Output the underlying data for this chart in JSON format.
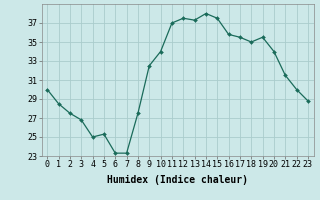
{
  "x": [
    0,
    1,
    2,
    3,
    4,
    5,
    6,
    7,
    8,
    9,
    10,
    11,
    12,
    13,
    14,
    15,
    16,
    17,
    18,
    19,
    20,
    21,
    22,
    23
  ],
  "y": [
    30.0,
    28.5,
    27.5,
    26.8,
    25.0,
    25.3,
    23.3,
    23.3,
    27.5,
    32.5,
    34.0,
    37.0,
    37.5,
    37.3,
    38.0,
    37.5,
    35.8,
    35.5,
    35.0,
    35.5,
    34.0,
    31.5,
    30.0,
    28.8
  ],
  "line_color": "#1a6b5a",
  "marker": "D",
  "marker_size": 2.0,
  "bg_color": "#cce8e8",
  "grid_color": "#aacccc",
  "xlabel": "Humidex (Indice chaleur)",
  "ylim": [
    23,
    39
  ],
  "xlim": [
    -0.5,
    23.5
  ],
  "yticks": [
    23,
    25,
    27,
    29,
    31,
    33,
    35,
    37
  ],
  "xticks": [
    0,
    1,
    2,
    3,
    4,
    5,
    6,
    7,
    8,
    9,
    10,
    11,
    12,
    13,
    14,
    15,
    16,
    17,
    18,
    19,
    20,
    21,
    22,
    23
  ],
  "xtick_labels": [
    "0",
    "1",
    "2",
    "3",
    "4",
    "5",
    "6",
    "7",
    "8",
    "9",
    "10",
    "11",
    "12",
    "13",
    "14",
    "15",
    "16",
    "17",
    "18",
    "19",
    "20",
    "21",
    "22",
    "23"
  ],
  "axis_fontsize": 6.5,
  "tick_fontsize": 6.0,
  "xlabel_fontsize": 7.0
}
